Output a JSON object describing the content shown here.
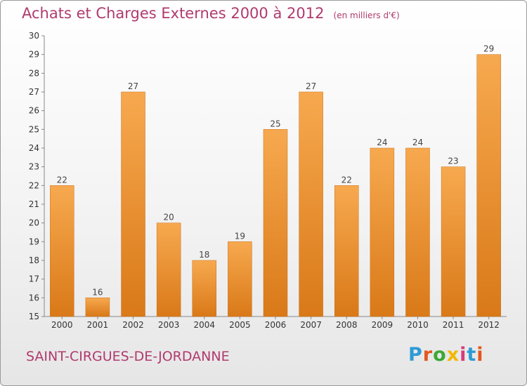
{
  "title": "Achats et Charges Externes 2000 à 2012",
  "subtitle": "(en milliers d'€)",
  "commune": "SAINT-CIRGUES-DE-JORDANNE",
  "logo": {
    "text": "Proxiti",
    "letters": [
      {
        "ch": "P",
        "color": "#2d9ad6"
      },
      {
        "ch": "r",
        "color": "#e2571e"
      },
      {
        "ch": "o",
        "color": "#3aa935"
      },
      {
        "ch": "x",
        "color": "#f2b705"
      },
      {
        "ch": "i",
        "color": "#d63b7a"
      },
      {
        "ch": "t",
        "color": "#2d9ad6"
      },
      {
        "ch": "i",
        "color": "#e2571e"
      }
    ]
  },
  "colors": {
    "bar_light": "#f7a94f",
    "bar_dark": "#d97918",
    "bar_stroke": "#c9701a",
    "title": "#b03a6e"
  },
  "chart_data": {
    "type": "bar",
    "title": "Achats et Charges Externes 2000 à 2012",
    "subtitle": "(en milliers d'€)",
    "categories": [
      "2000",
      "2001",
      "2002",
      "2003",
      "2004",
      "2005",
      "2006",
      "2007",
      "2008",
      "2009",
      "2010",
      "2011",
      "2012"
    ],
    "values": [
      22,
      16,
      27,
      20,
      18,
      19,
      25,
      27,
      22,
      24,
      24,
      23,
      29
    ],
    "ylim": [
      15,
      30
    ],
    "yticks": [
      15,
      16,
      17,
      18,
      19,
      20,
      21,
      22,
      23,
      24,
      25,
      26,
      27,
      28,
      29,
      30
    ],
    "xlabel": "",
    "ylabel": "",
    "grid": false,
    "legend": "none"
  }
}
